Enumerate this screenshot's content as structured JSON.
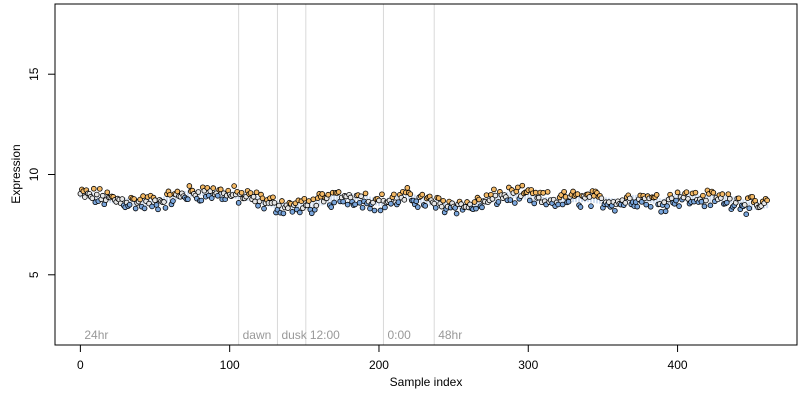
{
  "chart_data": {
    "type": "scatter",
    "title": "",
    "xlabel": "Sample index",
    "ylabel": "Expression",
    "xlim": [
      -17,
      480
    ],
    "ylim": [
      1.5,
      18.5
    ],
    "x_ticks": [
      0,
      100,
      200,
      300,
      400
    ],
    "y_ticks": [
      5,
      10,
      15
    ],
    "grid": false,
    "point_style": "open circles (black outline), fill tinted by deviation from smoothed trend",
    "colors": {
      "above_trend": "#f4b965",
      "below_trend": "#7aa6dc",
      "near_trend": "#e6e6e6",
      "trend_band": "#a9c2e6",
      "phase_line": "#d9d9d9",
      "phase_label": "#999999"
    },
    "phase_markers": [
      {
        "label": "24hr",
        "x": 0
      },
      {
        "label": "dawn",
        "x": 106
      },
      {
        "label": "dusk",
        "x": 132
      },
      {
        "label": "12:00",
        "x": 151
      },
      {
        "label": "0:00",
        "x": 203
      },
      {
        "label": "48hr",
        "x": 237
      }
    ],
    "trend_knots": {
      "x": [
        0,
        10,
        25,
        40,
        50,
        60,
        70,
        80,
        90,
        100,
        110,
        120,
        130,
        140,
        150,
        160,
        170,
        180,
        190,
        200,
        210,
        220,
        230,
        240,
        250,
        260,
        270,
        280,
        290,
        300,
        310,
        320,
        330,
        340,
        350,
        360,
        370,
        380,
        390,
        400,
        410,
        420,
        430,
        440,
        450,
        460
      ],
      "y": [
        9.0,
        8.9,
        8.7,
        8.6,
        8.6,
        8.8,
        9.0,
        9.1,
        9.1,
        9.0,
        8.9,
        8.7,
        8.5,
        8.4,
        8.4,
        8.6,
        8.8,
        8.9,
        8.8,
        8.6,
        8.7,
        8.9,
        8.7,
        8.5,
        8.5,
        8.4,
        8.6,
        8.9,
        9.0,
        8.9,
        8.7,
        8.7,
        8.8,
        8.8,
        8.7,
        8.6,
        8.8,
        8.8,
        8.6,
        8.9,
        8.8,
        8.8,
        8.8,
        8.7,
        8.4,
        8.5
      ]
    },
    "n_points": 461
  }
}
